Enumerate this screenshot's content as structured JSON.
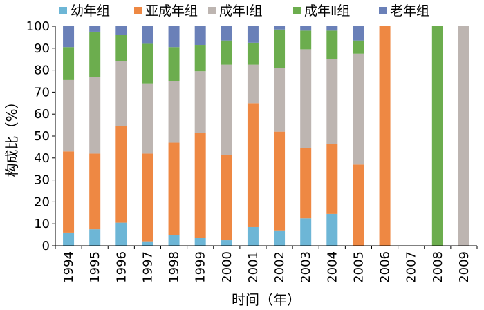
{
  "chart_data": {
    "type": "bar",
    "stacked": true,
    "categories": [
      "1994",
      "1995",
      "1996",
      "1997",
      "1998",
      "1999",
      "2000",
      "2001",
      "2002",
      "2003",
      "2004",
      "2005",
      "2006",
      "2007",
      "2008",
      "2009"
    ],
    "series": [
      {
        "name": "幼年组",
        "color": "#6DB6D6",
        "values": [
          6,
          7.5,
          10.5,
          2,
          5,
          3.5,
          2.5,
          8.5,
          7,
          12.5,
          14.5,
          0,
          0,
          0,
          0,
          0
        ]
      },
      {
        "name": "亚成年组",
        "color": "#EE8843",
        "values": [
          37,
          34.5,
          44,
          40,
          42,
          48,
          39,
          56.5,
          45,
          32,
          32,
          37,
          100,
          0,
          0,
          0
        ]
      },
      {
        "name": "成年Ⅰ组",
        "color": "#BDB5B1",
        "values": [
          32.5,
          35,
          29.5,
          32,
          28,
          28,
          41,
          17.5,
          29,
          45,
          38.5,
          50.5,
          0,
          0,
          0,
          100
        ]
      },
      {
        "name": "成年Ⅱ组",
        "color": "#6CAD4E",
        "values": [
          15,
          20.5,
          12,
          18,
          15.5,
          12,
          11,
          10,
          17.5,
          8.5,
          13,
          6,
          0,
          0,
          100,
          0
        ]
      },
      {
        "name": "老年组",
        "color": "#6A80B8",
        "values": [
          9.5,
          2.5,
          4,
          8,
          9.5,
          8.5,
          6.5,
          7.5,
          1.5,
          2,
          2,
          6.5,
          0,
          0,
          0,
          0
        ]
      }
    ],
    "ylim": [
      0,
      100
    ],
    "yticks": [
      0,
      10,
      20,
      30,
      40,
      50,
      60,
      70,
      80,
      90,
      100
    ],
    "xlabel": "时间（年）",
    "ylabel": "构成比（%）",
    "legend_position": "top",
    "grid": false
  }
}
